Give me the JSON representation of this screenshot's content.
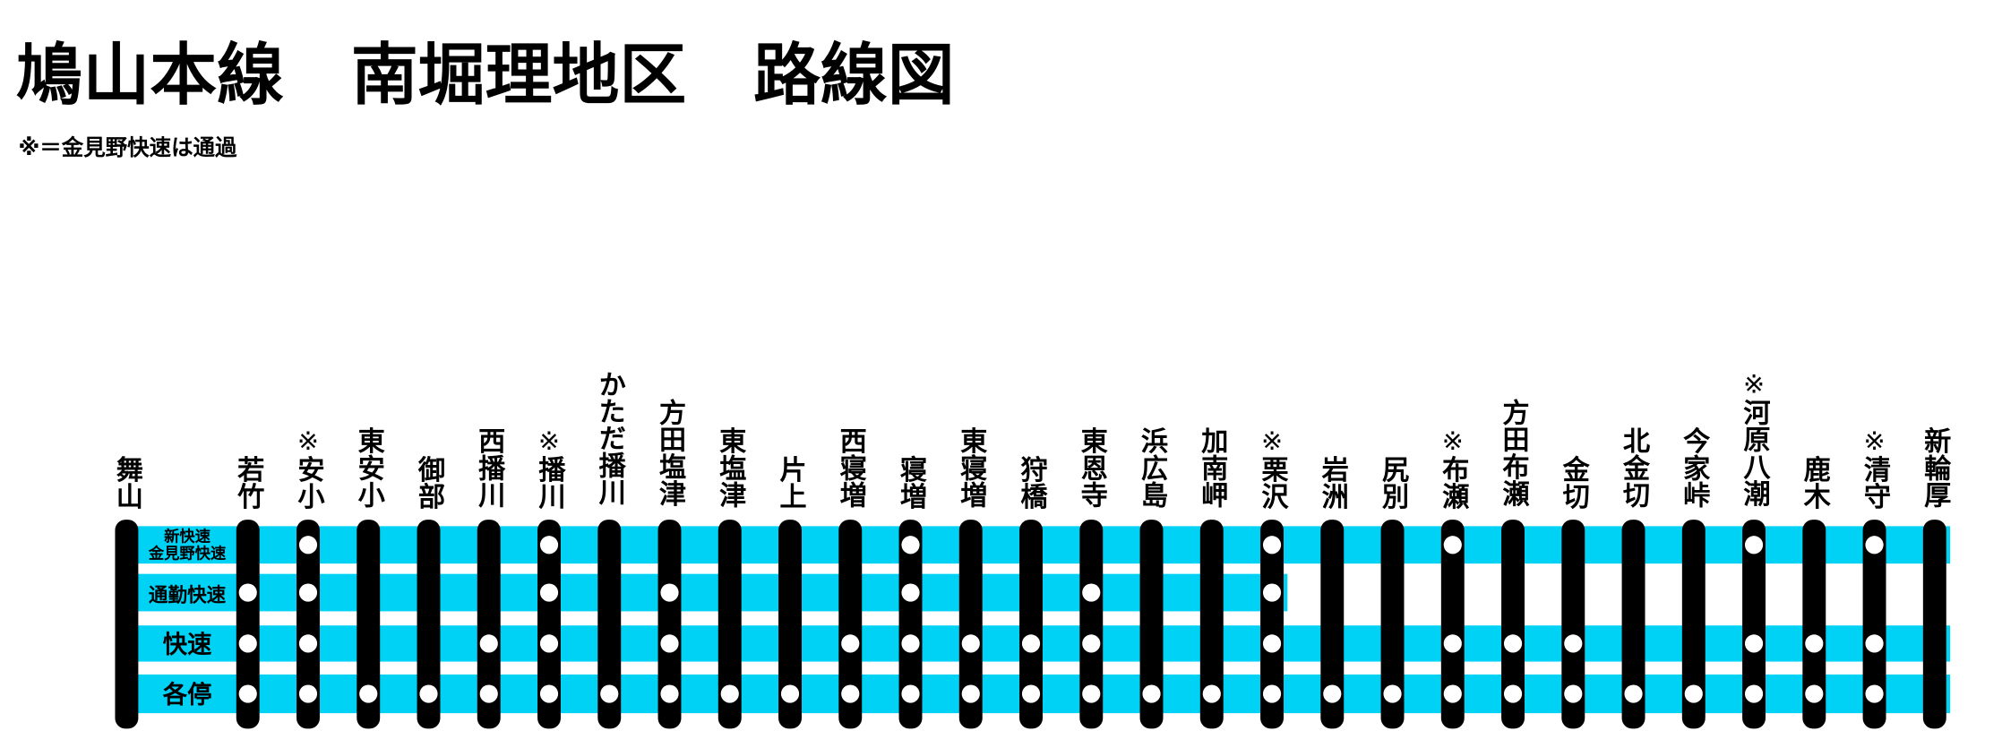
{
  "header": {
    "title": "鳩山本線　南堀理地区　路線図",
    "note": "※＝金見野快速は通過"
  },
  "services": [
    {
      "name": [
        "新快速",
        "金見野快速"
      ]
    },
    {
      "name": [
        "通勤快速"
      ]
    },
    {
      "name": [
        "快速"
      ]
    },
    {
      "name": [
        "各停"
      ]
    }
  ],
  "stations": [
    {
      "name": "舞山",
      "stops": [
        true,
        true,
        true,
        true
      ]
    },
    {
      "name": "若竹",
      "stops": [
        false,
        true,
        true,
        true
      ]
    },
    {
      "name": "安小",
      "mark": "※",
      "stops": [
        true,
        true,
        true,
        true
      ]
    },
    {
      "name": "東安小",
      "stops": [
        false,
        false,
        false,
        true
      ]
    },
    {
      "name": "御部",
      "stops": [
        false,
        false,
        false,
        true
      ]
    },
    {
      "name": "西播川",
      "stops": [
        false,
        false,
        true,
        true
      ]
    },
    {
      "name": "播川",
      "mark": "※",
      "stops": [
        true,
        true,
        true,
        true
      ]
    },
    {
      "name": "かただ播川",
      "stops": [
        false,
        false,
        false,
        true
      ]
    },
    {
      "name": "方田塩津",
      "stops": [
        false,
        true,
        true,
        true
      ]
    },
    {
      "name": "東塩津",
      "stops": [
        false,
        false,
        false,
        true
      ]
    },
    {
      "name": "片上",
      "stops": [
        false,
        false,
        false,
        true
      ]
    },
    {
      "name": "西寝増",
      "stops": [
        false,
        false,
        true,
        true
      ]
    },
    {
      "name": "寝増",
      "stops": [
        true,
        true,
        true,
        true
      ]
    },
    {
      "name": "東寝増",
      "stops": [
        false,
        false,
        true,
        true
      ]
    },
    {
      "name": "狩橋",
      "stops": [
        false,
        false,
        true,
        true
      ]
    },
    {
      "name": "東恩寺",
      "stops": [
        false,
        true,
        true,
        true
      ]
    },
    {
      "name": "浜広島",
      "stops": [
        false,
        false,
        false,
        true
      ]
    },
    {
      "name": "加南岬",
      "stops": [
        false,
        false,
        false,
        true
      ]
    },
    {
      "name": "栗沢",
      "mark": "※",
      "stops": [
        true,
        true,
        true,
        true
      ]
    },
    {
      "name": "岩洲",
      "stops": [
        false,
        null,
        false,
        true
      ]
    },
    {
      "name": "尻別",
      "stops": [
        false,
        null,
        false,
        true
      ]
    },
    {
      "name": "布瀬",
      "mark": "※",
      "stops": [
        true,
        null,
        true,
        true
      ]
    },
    {
      "name": "方田布瀬",
      "stops": [
        false,
        null,
        true,
        true
      ]
    },
    {
      "name": "金切",
      "stops": [
        false,
        null,
        true,
        true
      ]
    },
    {
      "name": "北金切",
      "stops": [
        false,
        null,
        false,
        true
      ]
    },
    {
      "name": "今家峠",
      "stops": [
        false,
        null,
        false,
        true
      ]
    },
    {
      "name": "河原八潮",
      "mark": "※",
      "stops": [
        true,
        null,
        true,
        true
      ]
    },
    {
      "name": "鹿木",
      "stops": [
        false,
        null,
        true,
        true
      ]
    },
    {
      "name": "清守",
      "mark": "※",
      "stops": [
        true,
        null,
        true,
        true
      ]
    },
    {
      "name": "新輪厚",
      "stops": [
        true,
        null,
        true,
        true
      ]
    }
  ]
}
